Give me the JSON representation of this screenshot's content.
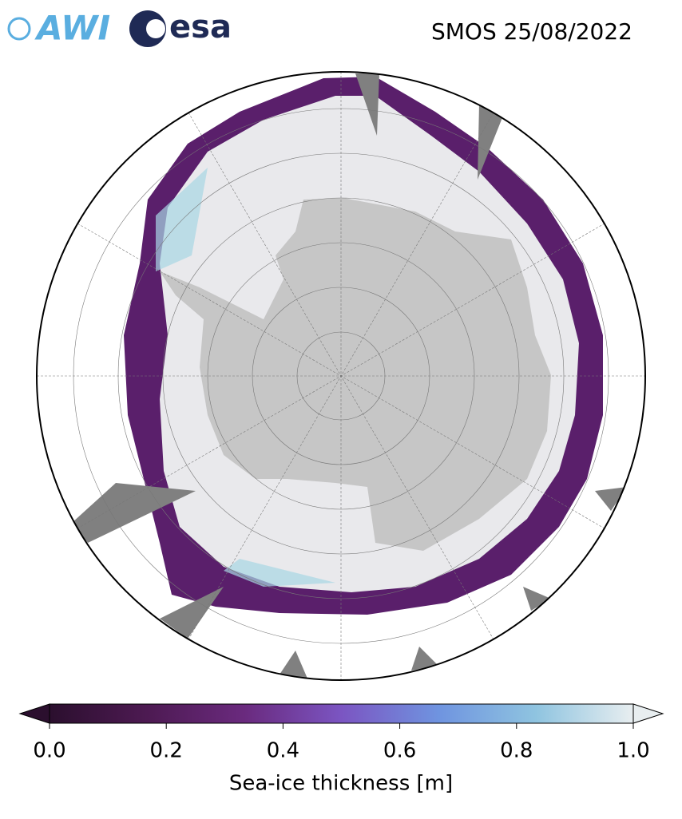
{
  "header": {
    "logos": [
      "AWI",
      "esa"
    ],
    "title": "SMOS 25/08/2022"
  },
  "colorbar": {
    "label": "Sea-ice thickness [m]",
    "lim": [
      0,
      1
    ],
    "ticks": [
      {
        "value": 0,
        "label": "0.0"
      },
      {
        "value": 0.2,
        "label": "0.2"
      },
      {
        "value": 0.4,
        "label": "0.4"
      },
      {
        "value": 0.6,
        "label": "0.6"
      },
      {
        "value": 0.8,
        "label": "0.8"
      },
      {
        "value": 1,
        "label": "1.0"
      }
    ],
    "colors": [
      "#2b0f2e",
      "#4d1a52",
      "#6a2a7e",
      "#7b55c2",
      "#6f94e0",
      "#8fc4e0",
      "#e8eef0"
    ]
  }
}
